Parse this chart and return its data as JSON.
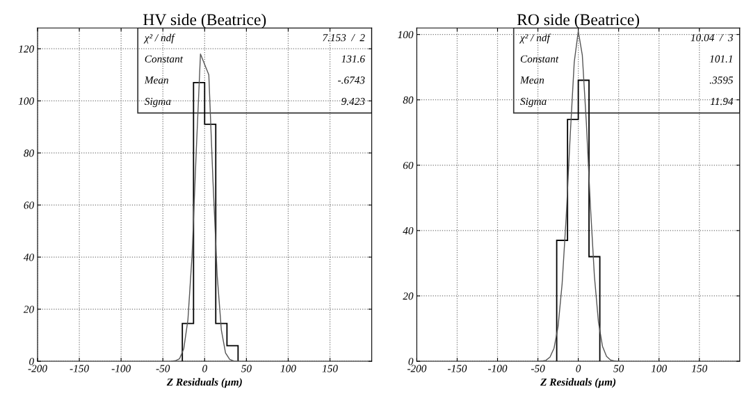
{
  "chart_data": [
    {
      "type": "histogram",
      "title": "HV side (Beatrice)",
      "xlabel": "Z Residuals (µm)",
      "xlim": [
        -200,
        200
      ],
      "xticks": [
        -200,
        -150,
        -100,
        -50,
        0,
        50,
        100,
        150
      ],
      "ylim": [
        0,
        128
      ],
      "yticks": [
        0,
        20,
        40,
        60,
        80,
        100,
        120
      ],
      "grid": true,
      "series": [
        {
          "color": "#000000",
          "bins": [
            -26.7,
            -13.3,
            0,
            13.3,
            26.7,
            40
          ],
          "values": [
            14.5,
            107,
            91,
            14.5,
            6
          ]
        },
        {
          "type": "line",
          "color": "#555555",
          "x": [
            -40,
            -35,
            -30,
            -25,
            -20,
            -15,
            -10,
            -5,
            5,
            10,
            15,
            20,
            25,
            30,
            35,
            40
          ],
          "values": [
            0,
            0.2,
            1,
            4.8,
            16,
            41,
            81,
            118,
            110,
            69,
            33,
            12,
            3.2,
            0.7,
            0.1,
            0
          ]
        }
      ],
      "annotations": [
        "χ² / ndf",
        "7.153  /  2",
        "Constant",
        "131.6",
        "Mean",
        "-.6743",
        "Sigma",
        "9.423"
      ]
    },
    {
      "type": "histogram",
      "title": "RO side (Beatrice)",
      "xlabel": "Z Residuals (µm)",
      "xlim": [
        -200,
        200
      ],
      "xticks": [
        -200,
        -150,
        -100,
        -50,
        0,
        50,
        100,
        150
      ],
      "ylim": [
        0,
        102
      ],
      "yticks": [
        0,
        20,
        40,
        60,
        80,
        100
      ],
      "grid": true,
      "series": [
        {
          "color": "#000000",
          "bins": [
            -26.7,
            -13.3,
            0,
            13.3,
            26.7
          ],
          "values": [
            37,
            74,
            86,
            32
          ]
        },
        {
          "type": "line",
          "color": "#555555",
          "x": [
            -50,
            -45,
            -40,
            -35,
            -30,
            -25,
            -20,
            -15,
            -10,
            -5,
            0,
            5,
            10,
            15,
            20,
            25,
            30,
            35,
            40,
            45,
            50
          ],
          "values": [
            0,
            0.1,
            0.3,
            1.3,
            4,
            10.6,
            23.7,
            44,
            69,
            91.5,
            101,
            93.7,
            73,
            47.7,
            26,
            12,
            4.6,
            1.5,
            0.4,
            0.1,
            0
          ]
        }
      ],
      "annotations": [
        "χ² / ndf",
        "10.04  /  3",
        "Constant",
        "101.1",
        "Mean",
        ".3595",
        "Sigma",
        "11.94"
      ]
    }
  ]
}
